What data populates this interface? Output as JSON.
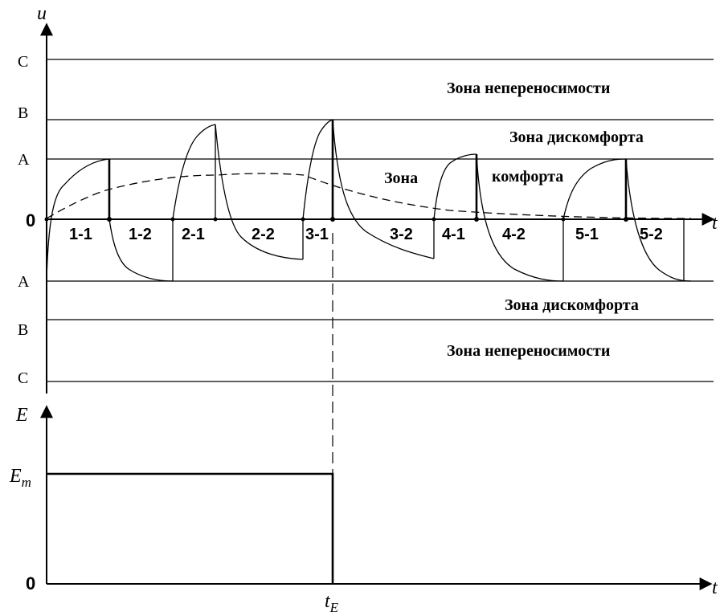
{
  "upper": {
    "axis_label": "u",
    "time_label": "t",
    "zero_label": "0",
    "levels": [
      {
        "label": "C"
      },
      {
        "label": "B"
      },
      {
        "label": "A"
      },
      {
        "label": "A"
      },
      {
        "label": "B"
      },
      {
        "label": "C"
      }
    ],
    "zones": [
      {
        "text": "Зона непереносимости"
      },
      {
        "text": "Зона дискомфорта"
      },
      {
        "text": "Зона"
      },
      {
        "text": "комфорта"
      },
      {
        "text": "Зона дискомфорта"
      },
      {
        "text": "Зона непереносимости"
      }
    ],
    "segments": [
      "1-1",
      "1-2",
      "2-1",
      "2-2",
      "3-1",
      "3-2",
      "4-1",
      "4-2",
      "5-1",
      "5-2"
    ]
  },
  "lower": {
    "axis_label": "E",
    "time_label": "t",
    "zero_label": "0",
    "level_label": "E",
    "level_sub": "m",
    "end_label": "t",
    "end_sub": "E"
  }
}
